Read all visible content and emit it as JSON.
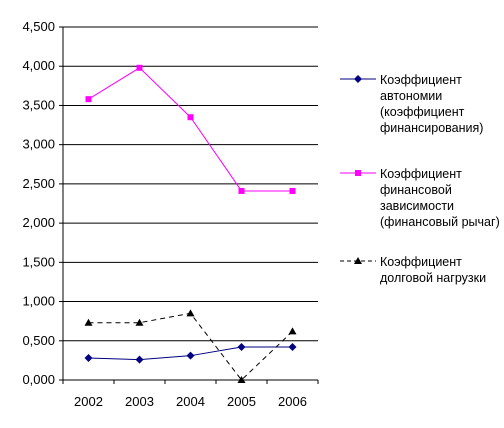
{
  "chart_data": {
    "type": "line",
    "categories": [
      "2002",
      "2003",
      "2004",
      "2005",
      "2006"
    ],
    "ylim": [
      0,
      4.5
    ],
    "y_ticks": [
      "0,000",
      "0,500",
      "1,000",
      "1,500",
      "2,000",
      "2,500",
      "3,000",
      "3,500",
      "4,000",
      "4,500"
    ],
    "grid": true,
    "legend_position": "right",
    "series": [
      {
        "name": "Коэффициент автономии (коэффициент финансирования)",
        "values": [
          0.28,
          0.26,
          0.31,
          0.42,
          0.42
        ],
        "color": "#000080",
        "marker": "diamond",
        "dash": "solid"
      },
      {
        "name": "Коэффициент финансовой зависимости (финансовый рычаг)",
        "values": [
          3.58,
          3.98,
          3.35,
          2.41,
          2.41
        ],
        "color": "#ff00ff",
        "marker": "square",
        "dash": "solid"
      },
      {
        "name": "Коэффициент долговой нагрузки",
        "values": [
          0.73,
          0.73,
          0.85,
          0.0,
          0.62
        ],
        "color": "#000000",
        "marker": "triangle",
        "dash": "dashed"
      }
    ]
  }
}
